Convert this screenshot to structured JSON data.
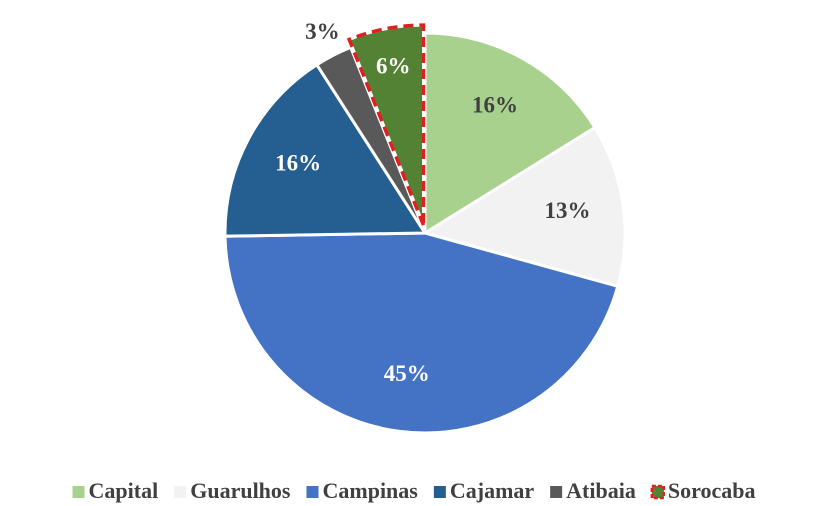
{
  "chart_data": {
    "type": "pie",
    "categories": [
      "Capital",
      "Guarulhos",
      "Campinas",
      "Cajamar",
      "Atibaia",
      "Sorocaba"
    ],
    "values": [
      16,
      13,
      45,
      16,
      3,
      6
    ],
    "value_labels": [
      "16%",
      "13%",
      "45%",
      "16%",
      "3%",
      "6%"
    ],
    "colors": [
      "#a9d18e",
      "#f2f2f2",
      "#4472c4",
      "#255e91",
      "#595959",
      "#548235"
    ],
    "highlight": "Sorocaba",
    "highlight_border": "#e02020",
    "legend": "bottom"
  }
}
